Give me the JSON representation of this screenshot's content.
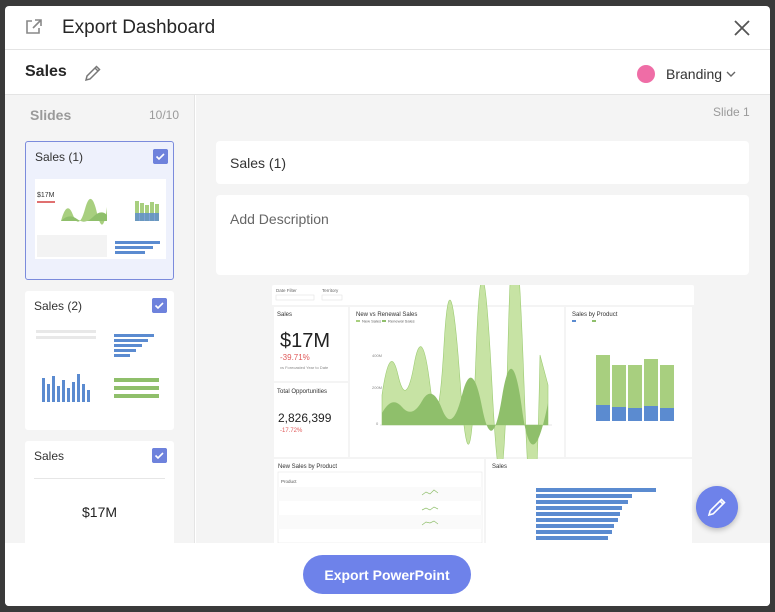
{
  "dialog": {
    "title": "Export Dashboard"
  },
  "dashboard": {
    "name": "Sales",
    "branding_label": "Branding",
    "branding_color": "#ef6da6"
  },
  "slides_panel": {
    "header": "Slides",
    "count": "10/10",
    "cards": [
      {
        "label": "Sales (1)",
        "selected": true,
        "checked": true
      },
      {
        "label": "Sales (2)",
        "selected": false,
        "checked": true
      },
      {
        "label": "Sales",
        "selected": false,
        "checked": true,
        "thumb_value": "$17M"
      }
    ]
  },
  "slide_editor": {
    "slide_label": "Slide 1",
    "title_value": "Sales (1)",
    "description_placeholder": "Add Description"
  },
  "preview": {
    "date_filter": "Date Filter",
    "territory": "Territory",
    "sales_label": "Sales",
    "sales_value": "$17M",
    "sales_change": "-39.71%",
    "sales_note": "vs Forecasted Year to Date",
    "opps_label": "Total Opportunities",
    "opps_value": "2,826,399",
    "opps_change": "-17.72%",
    "new_vs_renewal_title": "New vs Renewal Sales",
    "legend_new": "New Sales",
    "legend_renewal": "Renewal Sales",
    "sales_by_product_title": "Sales by Product",
    "new_sales_by_product_title": "New Sales by Product",
    "sales_bar_title": "Sales",
    "product_col": "Product"
  },
  "footer": {
    "export_label": "Export PowerPoint"
  },
  "colors": {
    "accent": "#6e82ea",
    "checkbox": "#6e82dc",
    "chart_light_green": "#a8cf7f",
    "chart_dark_green": "#8fbf6b",
    "chart_blue": "#5b8bd0"
  }
}
